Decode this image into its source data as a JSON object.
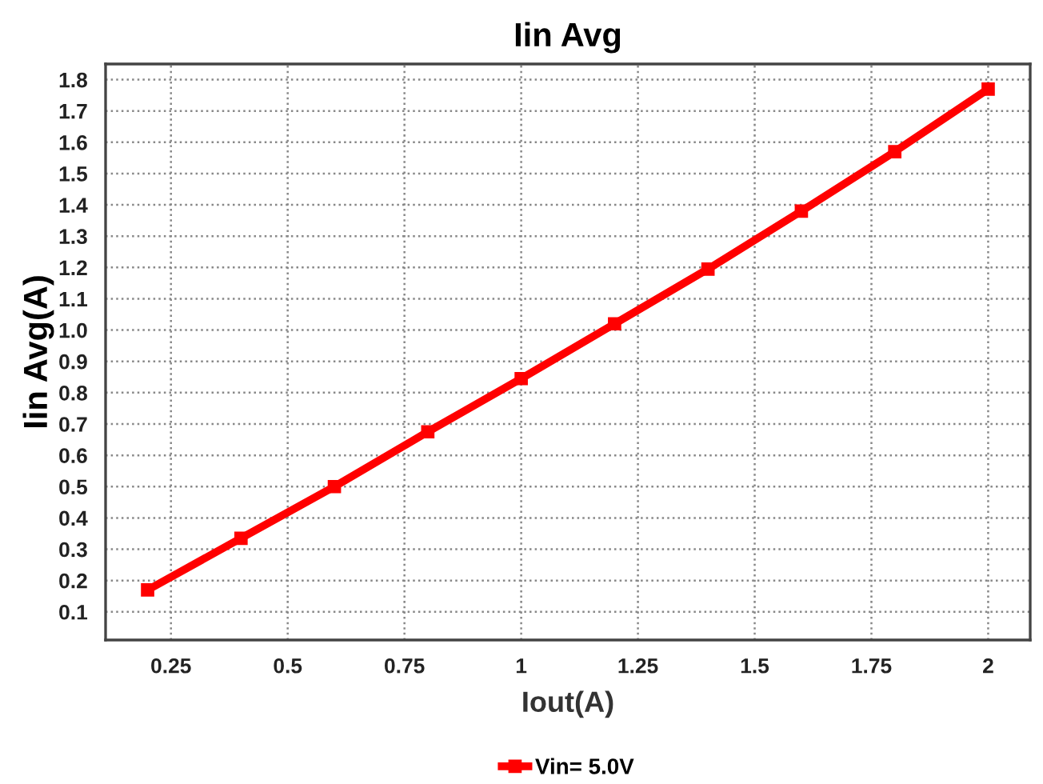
{
  "chart_data": {
    "type": "line",
    "title": "Iin Avg",
    "xlabel": "Iout(A)",
    "ylabel": "Iin Avg(A)",
    "x": [
      0.2,
      0.4,
      0.6,
      0.8,
      1.0,
      1.2,
      1.4,
      1.6,
      1.8,
      2.0
    ],
    "series": [
      {
        "name": "Vin= 5.0V",
        "color": "#ff0000",
        "values": [
          0.17,
          0.335,
          0.5,
          0.675,
          0.845,
          1.02,
          1.195,
          1.38,
          1.57,
          1.77
        ]
      }
    ],
    "xlim": [
      0.11,
      2.09
    ],
    "xticks": [
      0.25,
      0.5,
      0.75,
      1,
      1.25,
      1.5,
      1.75,
      2
    ],
    "ylim": [
      0.01,
      1.85
    ],
    "yticks": [
      0.1,
      0.2,
      0.3,
      0.4,
      0.5,
      0.6,
      0.7,
      0.8,
      0.9,
      {
        "value": 1.0,
        "label": "1.0"
      },
      1.1,
      1.2,
      1.3,
      1.4,
      1.5,
      1.6,
      1.7,
      1.8
    ],
    "grid": true,
    "legend": "bottom",
    "marker": "square",
    "line_style": "solid"
  }
}
